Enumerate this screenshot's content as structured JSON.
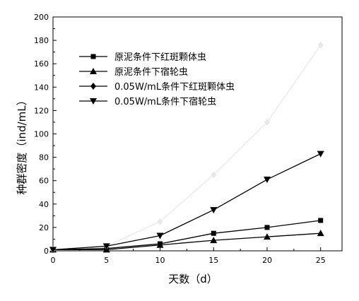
{
  "chart_data": {
    "type": "line",
    "xlabel": "天数（d）",
    "ylabel": "种群密度（ind/mL）",
    "xlim": [
      0,
      27
    ],
    "ylim": [
      0,
      200
    ],
    "x_ticks": [
      0,
      5,
      10,
      15,
      20,
      25
    ],
    "y_ticks": [
      0,
      20,
      40,
      60,
      80,
      100,
      120,
      140,
      160,
      180,
      200
    ],
    "grid": false,
    "legend_position": "top-left",
    "x": [
      0,
      5,
      10,
      15,
      20,
      25
    ],
    "series": [
      {
        "name": "原泥条件下红斑颗体虫",
        "marker": "square",
        "color": "#000000",
        "values": [
          1,
          2,
          6,
          15,
          20,
          26
        ]
      },
      {
        "name": "原泥条件下宿轮虫",
        "marker": "triangle-up",
        "color": "#000000",
        "values": [
          1,
          1,
          5,
          9,
          12,
          15
        ]
      },
      {
        "name": "0.05W/mL条件下红斑颗体虫",
        "marker": "diamond",
        "color": "#e8e8e8",
        "values": [
          1,
          4,
          25,
          65,
          110,
          176
        ]
      },
      {
        "name": "0.05W/mL条件下宿轮虫",
        "marker": "triangle-down",
        "color": "#000000",
        "values": [
          1,
          4,
          13,
          35,
          61,
          83
        ]
      }
    ]
  }
}
